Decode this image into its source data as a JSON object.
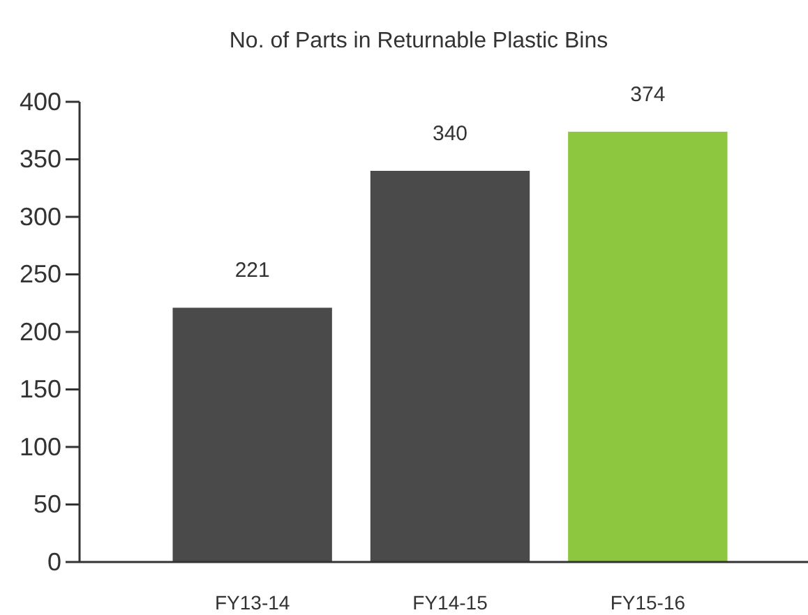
{
  "chart_data": {
    "type": "bar",
    "title": "No. of Parts in Returnable Plastic Bins",
    "categories": [
      "FY13-14",
      "FY14-15",
      "FY15-16"
    ],
    "values": [
      221,
      340,
      374
    ],
    "colors": [
      "#4a4a4a",
      "#4a4a4a",
      "#8dc63f"
    ],
    "ylim": [
      0,
      400
    ],
    "yticks": [
      0,
      50,
      100,
      150,
      200,
      250,
      300,
      350,
      400
    ],
    "data_labels": true,
    "grid": false
  }
}
